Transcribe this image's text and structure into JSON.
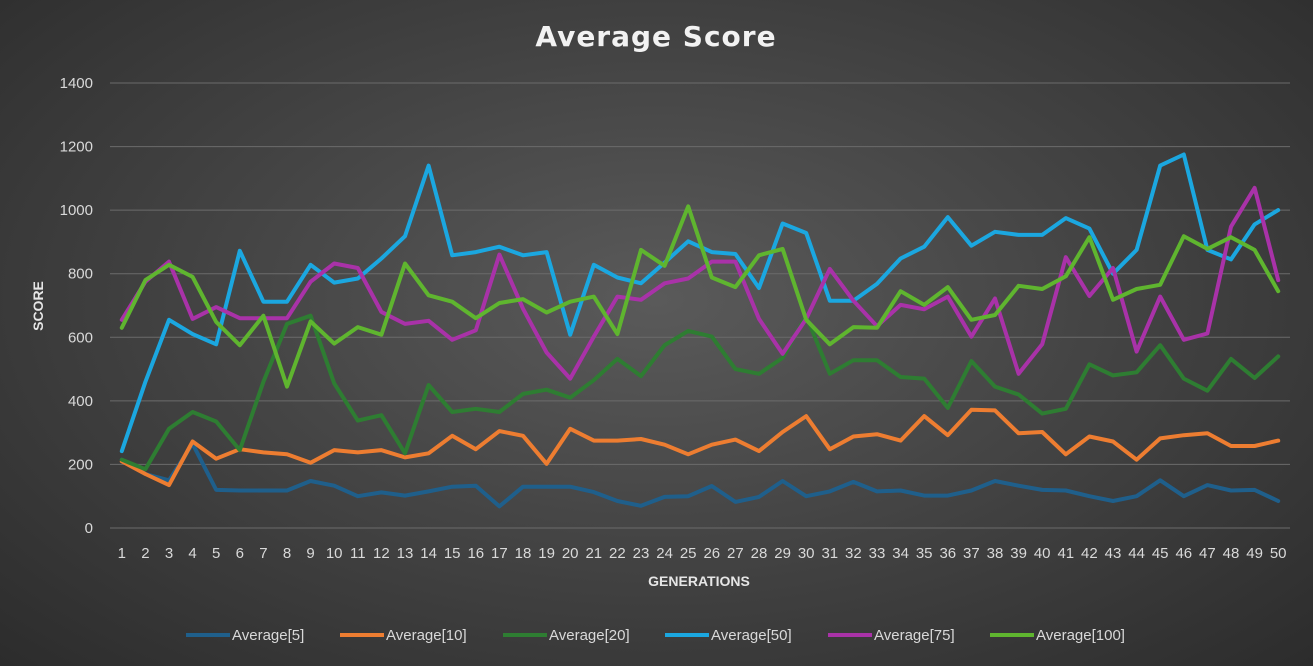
{
  "chart_data": {
    "type": "line",
    "title": "Average Score",
    "xlabel": "GENERATIONS",
    "ylabel": "SCORE",
    "ylim": [
      0,
      1400
    ],
    "yticks": [
      0,
      200,
      400,
      600,
      800,
      1000,
      1200,
      1400
    ],
    "grid": true,
    "legend_position": "bottom",
    "categories": [
      "1",
      "2",
      "3",
      "4",
      "5",
      "6",
      "7",
      "8",
      "9",
      "10",
      "11",
      "12",
      "13",
      "14",
      "15",
      "16",
      "17",
      "18",
      "19",
      "20",
      "21",
      "22",
      "23",
      "24",
      "25",
      "26",
      "27",
      "28",
      "29",
      "30",
      "31",
      "32",
      "33",
      "34",
      "35",
      "36",
      "37",
      "38",
      "39",
      "40",
      "41",
      "42",
      "43",
      "44",
      "45",
      "46",
      "47",
      "48",
      "49",
      "50"
    ],
    "series": [
      {
        "name": "Average[5]",
        "color": "#1f5f8b",
        "values": [
          215,
          170,
          150,
          265,
          120,
          118,
          118,
          118,
          148,
          133,
          100,
          112,
          102,
          115,
          130,
          133,
          68,
          130,
          130,
          130,
          113,
          85,
          70,
          98,
          100,
          132,
          82,
          98,
          148,
          100,
          115,
          145,
          115,
          118,
          102,
          102,
          118,
          148,
          133,
          120,
          118,
          100,
          85,
          100,
          150,
          100,
          135,
          118,
          120,
          85
        ]
      },
      {
        "name": "Average[10]",
        "color": "#ed7d31",
        "values": [
          210,
          170,
          135,
          272,
          218,
          248,
          238,
          232,
          205,
          245,
          238,
          245,
          222,
          235,
          290,
          248,
          305,
          290,
          202,
          312,
          275,
          275,
          280,
          262,
          232,
          262,
          278,
          242,
          302,
          352,
          248,
          288,
          295,
          275,
          352,
          292,
          372,
          370,
          298,
          302,
          232,
          288,
          272,
          215,
          282,
          292,
          298,
          258,
          258,
          275
        ]
      },
      {
        "name": "Average[20]",
        "color": "#2e7d32",
        "values": [
          215,
          185,
          312,
          365,
          335,
          245,
          460,
          642,
          668,
          455,
          338,
          355,
          235,
          450,
          365,
          375,
          365,
          422,
          435,
          410,
          465,
          532,
          478,
          575,
          620,
          602,
          500,
          485,
          535,
          668,
          485,
          528,
          528,
          475,
          470,
          378,
          525,
          445,
          420,
          360,
          375,
          515,
          480,
          490,
          575,
          470,
          432,
          532,
          472,
          540
        ]
      },
      {
        "name": "Average[50]",
        "color": "#1ba7e0",
        "values": [
          242,
          460,
          655,
          610,
          578,
          872,
          712,
          712,
          828,
          772,
          785,
          848,
          918,
          1140,
          858,
          868,
          885,
          858,
          868,
          608,
          828,
          788,
          770,
          835,
          902,
          868,
          862,
          755,
          958,
          928,
          715,
          715,
          768,
          848,
          885,
          978,
          888,
          932,
          922,
          922,
          975,
          942,
          800,
          875,
          1140,
          1175,
          875,
          845,
          955,
          1000
        ]
      },
      {
        "name": "Average[75]",
        "color": "#a932a8",
        "values": [
          655,
          775,
          838,
          658,
          695,
          660,
          660,
          660,
          775,
          832,
          818,
          680,
          642,
          652,
          592,
          622,
          860,
          690,
          552,
          470,
          602,
          728,
          718,
          770,
          785,
          838,
          838,
          658,
          548,
          658,
          815,
          715,
          635,
          702,
          688,
          728,
          602,
          722,
          485,
          578,
          852,
          730,
          818,
          555,
          728,
          592,
          612,
          948,
          1070,
          780
        ]
      },
      {
        "name": "Average[100]",
        "color": "#5fb52f",
        "values": [
          630,
          780,
          828,
          790,
          648,
          575,
          668,
          445,
          650,
          580,
          632,
          608,
          832,
          732,
          712,
          660,
          708,
          720,
          678,
          712,
          728,
          610,
          875,
          825,
          1012,
          788,
          758,
          858,
          878,
          655,
          578,
          632,
          630,
          745,
          702,
          758,
          655,
          670,
          762,
          752,
          792,
          915,
          718,
          752,
          765,
          918,
          878,
          915,
          875,
          745
        ]
      }
    ]
  }
}
